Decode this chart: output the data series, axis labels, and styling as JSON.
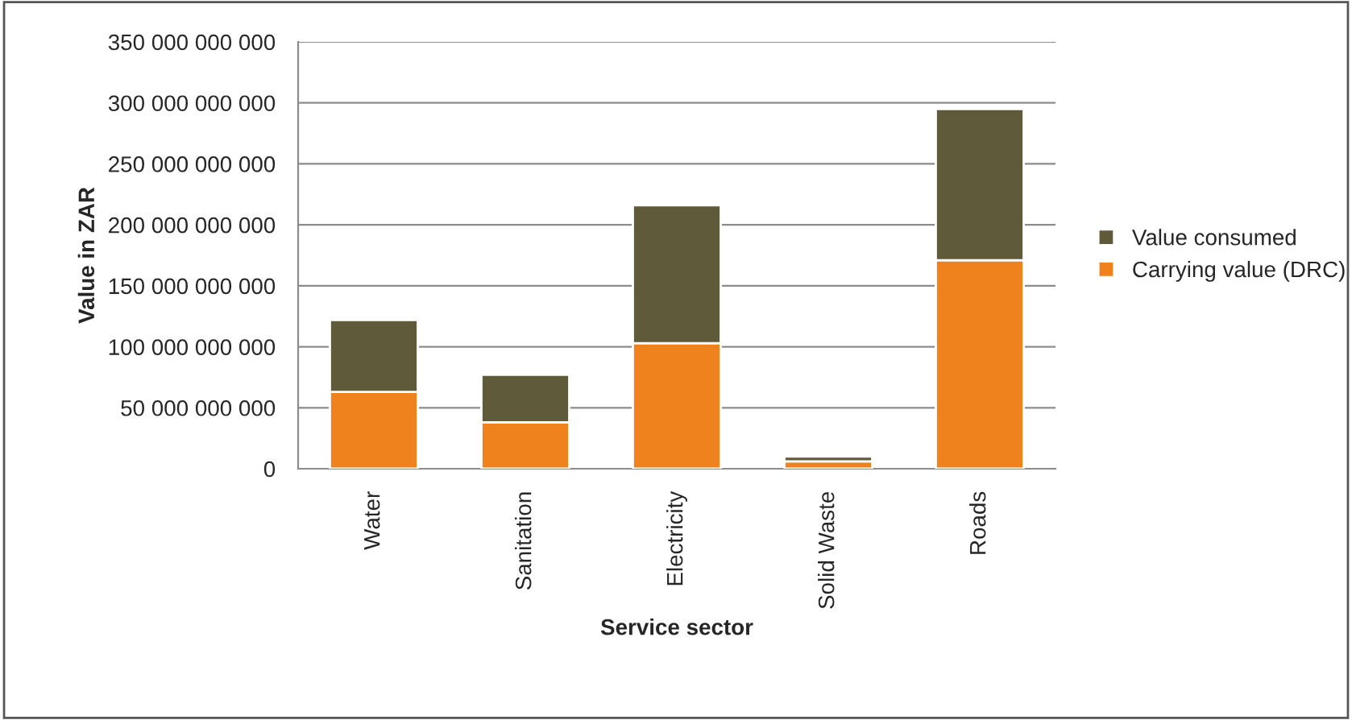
{
  "chart_data": {
    "type": "bar",
    "stacked": true,
    "xlabel": "Service sector",
    "ylabel": "Value in ZAR",
    "categories": [
      "Water",
      "Sanitation",
      "Electricity",
      "Solid Waste",
      "Roads"
    ],
    "series": [
      {
        "name": "Carrying value (DRC)",
        "color": "#f0821e",
        "values": [
          63000000000,
          38000000000,
          103000000000,
          6000000000,
          171000000000
        ]
      },
      {
        "name": "Value consumed",
        "color": "#5f5a3a",
        "values": [
          59000000000,
          39000000000,
          113000000000,
          4000000000,
          124000000000
        ]
      }
    ],
    "ylim": [
      0,
      350000000000
    ],
    "yticks": [
      {
        "value": 0,
        "label": "0"
      },
      {
        "value": 50000000000,
        "label": "50 000 000 000"
      },
      {
        "value": 100000000000,
        "label": "100 000 000 000"
      },
      {
        "value": 150000000000,
        "label": "150 000 000 000"
      },
      {
        "value": 200000000000,
        "label": "200 000 000 000"
      },
      {
        "value": 250000000000,
        "label": "250 000 000 000"
      },
      {
        "value": 300000000000,
        "label": "300 000 000 000"
      },
      {
        "value": 350000000000,
        "label": "350 000 000 000"
      }
    ],
    "grid": "y",
    "legend": "right"
  }
}
